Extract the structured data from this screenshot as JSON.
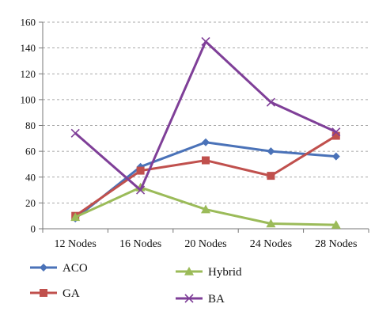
{
  "chart_data": {
    "type": "line",
    "categories": [
      "12 Nodes",
      "16 Nodes",
      "20 Nodes",
      "24 Nodes",
      "28 Nodes"
    ],
    "ylim": [
      0,
      160
    ],
    "yticks": [
      0,
      20,
      40,
      60,
      80,
      100,
      120,
      140,
      160
    ],
    "grid": "horizontal-dashed",
    "legend_placement": "bottom",
    "series": [
      {
        "name": "ACO",
        "values": [
          8,
          48,
          67,
          60,
          56
        ],
        "color": "#4a72b8",
        "marker": "diamond"
      },
      {
        "name": "GA",
        "values": [
          10,
          45,
          53,
          41,
          72
        ],
        "color": "#c0504d",
        "marker": "square"
      },
      {
        "name": "Hybrid",
        "values": [
          9,
          32,
          15,
          4,
          3
        ],
        "color": "#9bbb59",
        "marker": "triangle"
      },
      {
        "name": "BA",
        "values": [
          74,
          30,
          145,
          98,
          75
        ],
        "color": "#7f3f98",
        "marker": "x"
      }
    ],
    "title": "",
    "xlabel": "",
    "ylabel": ""
  }
}
